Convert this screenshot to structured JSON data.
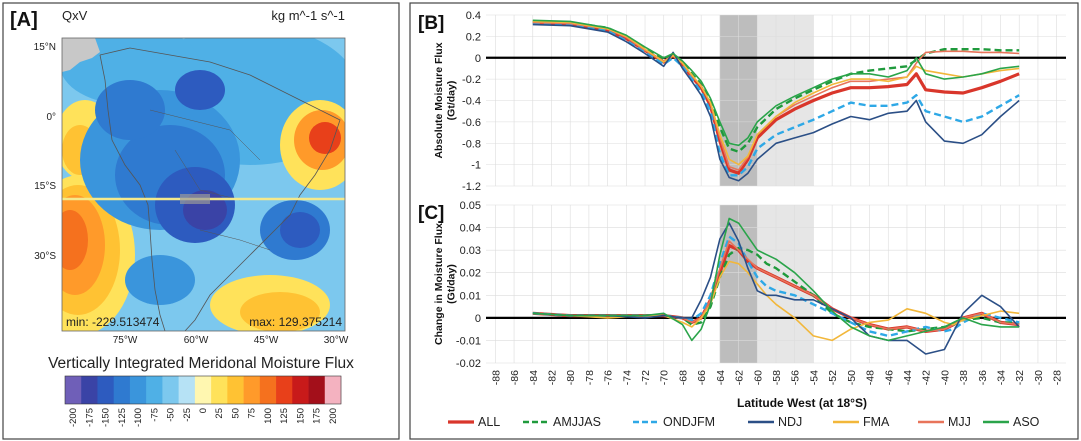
{
  "panel_a": {
    "label": "[A]",
    "var": "QxV",
    "units": "kg m^-1 s^-1",
    "lat_labels": [
      "15°N",
      "0°",
      "15°S",
      "30°S"
    ],
    "lon_labels": [
      "75°W",
      "60°W",
      "45°W",
      "30°W"
    ],
    "min_text": "min: -229.513474",
    "max_text": "max: 129.375214",
    "title": "Vertically Integrated Meridonal Moisture Flux",
    "colorbar": {
      "ticks": [
        "-200",
        "-175",
        "-150",
        "-125",
        "-100",
        "-75",
        "-50",
        "-25",
        "0",
        "25",
        "50",
        "75",
        "100",
        "125",
        "150",
        "175",
        "200"
      ],
      "colors": [
        "#6f5fb8",
        "#3a43a6",
        "#2d5bbf",
        "#2f7ad0",
        "#3a95dc",
        "#4fb0e6",
        "#7cc8ee",
        "#b6e2f5",
        "#fff7b0",
        "#ffe25a",
        "#ffc233",
        "#ff9a2a",
        "#f5711e",
        "#e8401a",
        "#c81a1a",
        "#a30f1a",
        "#f4b2c0"
      ]
    }
  },
  "chart_data": [
    {
      "panel": "[B]",
      "type": "line",
      "ylabel": "Absolute Moisture Flux (Gt/day)",
      "ylim": [
        -1.2,
        0.4
      ],
      "yticks": [
        "0.4",
        "0.2",
        "0",
        "-0.2",
        "-0.4",
        "-0.6",
        "-0.8",
        "-1",
        "-1.2"
      ],
      "ytick_values": [
        0.4,
        0.2,
        0,
        -0.2,
        -0.4,
        -0.6,
        -0.8,
        -1,
        -1.2
      ],
      "x": [
        -84,
        -80,
        -76,
        -74,
        -72,
        -70,
        -69,
        -68,
        -67,
        -66,
        -65,
        -64,
        -63,
        -62,
        -61,
        -60,
        -58,
        -56,
        -54,
        -52,
        -50,
        -48,
        -46,
        -44,
        -43,
        -42,
        -40,
        -38,
        -36,
        -34,
        -32
      ],
      "series": [
        {
          "name": "ALL",
          "values": [
            0.33,
            0.32,
            0.26,
            0.18,
            0.07,
            -0.04,
            0.02,
            -0.06,
            -0.18,
            -0.28,
            -0.45,
            -0.78,
            -1.05,
            -1.08,
            -0.95,
            -0.75,
            -0.58,
            -0.48,
            -0.4,
            -0.33,
            -0.28,
            -0.28,
            -0.27,
            -0.25,
            -0.15,
            -0.3,
            -0.32,
            -0.33,
            -0.28,
            -0.22,
            -0.15
          ]
        },
        {
          "name": "AMJJAS",
          "values": [
            0.34,
            0.33,
            0.28,
            0.2,
            0.08,
            -0.02,
            0.03,
            -0.04,
            -0.15,
            -0.25,
            -0.4,
            -0.65,
            -0.85,
            -0.88,
            -0.8,
            -0.65,
            -0.48,
            -0.38,
            -0.3,
            -0.22,
            -0.15,
            -0.12,
            -0.1,
            -0.08,
            -0.02,
            0.04,
            0.08,
            0.08,
            0.08,
            0.07,
            0.07
          ]
        },
        {
          "name": "ONDJFM",
          "values": [
            0.32,
            0.31,
            0.25,
            0.16,
            0.05,
            -0.06,
            0.0,
            -0.08,
            -0.2,
            -0.32,
            -0.5,
            -0.9,
            -1.1,
            -1.1,
            -1.02,
            -0.85,
            -0.72,
            -0.65,
            -0.58,
            -0.5,
            -0.42,
            -0.45,
            -0.45,
            -0.42,
            -0.35,
            -0.5,
            -0.55,
            -0.6,
            -0.55,
            -0.45,
            -0.35
          ]
        },
        {
          "name": "NDJ",
          "values": [
            0.31,
            0.3,
            0.24,
            0.15,
            0.04,
            -0.08,
            0.05,
            -0.1,
            -0.22,
            -0.35,
            -0.55,
            -0.95,
            -1.12,
            -1.15,
            -1.08,
            -0.95,
            -0.8,
            -0.75,
            -0.7,
            -0.62,
            -0.55,
            -0.58,
            -0.52,
            -0.5,
            -0.4,
            -0.6,
            -0.78,
            -0.8,
            -0.72,
            -0.55,
            -0.4
          ]
        },
        {
          "name": "FMA",
          "values": [
            0.34,
            0.33,
            0.27,
            0.2,
            0.08,
            -0.04,
            0.02,
            -0.05,
            -0.16,
            -0.27,
            -0.42,
            -0.72,
            -0.95,
            -1.0,
            -0.92,
            -0.72,
            -0.55,
            -0.42,
            -0.33,
            -0.25,
            -0.2,
            -0.2,
            -0.22,
            -0.18,
            -0.08,
            -0.12,
            -0.15,
            -0.18,
            -0.15,
            -0.12,
            -0.1
          ]
        },
        {
          "name": "MJJ",
          "values": [
            0.33,
            0.32,
            0.27,
            0.19,
            0.07,
            -0.03,
            0.02,
            -0.05,
            -0.17,
            -0.26,
            -0.43,
            -0.75,
            -1.02,
            -1.05,
            -0.93,
            -0.72,
            -0.55,
            -0.44,
            -0.36,
            -0.28,
            -0.22,
            -0.22,
            -0.2,
            -0.18,
            -0.05,
            0.05,
            0.06,
            0.06,
            0.05,
            0.05,
            0.04
          ]
        },
        {
          "name": "ASO",
          "values": [
            0.35,
            0.34,
            0.28,
            0.21,
            0.1,
            0.0,
            0.04,
            -0.03,
            -0.12,
            -0.22,
            -0.38,
            -0.6,
            -0.8,
            -0.82,
            -0.75,
            -0.6,
            -0.45,
            -0.36,
            -0.28,
            -0.2,
            -0.15,
            -0.15,
            -0.18,
            -0.12,
            0.0,
            -0.15,
            -0.2,
            -0.18,
            -0.15,
            -0.1,
            -0.08
          ]
        }
      ]
    },
    {
      "panel": "[C]",
      "type": "line",
      "ylabel": "Change in Moisture Flux (Gt/day)",
      "ylim": [
        -0.02,
        0.05
      ],
      "yticks": [
        "0.05",
        "0.04",
        "0.03",
        "0.02",
        "0.01",
        "0",
        "-0.01",
        "-0.02"
      ],
      "ytick_values": [
        0.05,
        0.04,
        0.03,
        0.02,
        0.01,
        0,
        -0.01,
        -0.02
      ],
      "x": [
        -84,
        -80,
        -76,
        -72,
        -70,
        -68,
        -67,
        -66,
        -65,
        -64,
        -63,
        -62,
        -61,
        -60,
        -59,
        -58,
        -56,
        -54,
        -52,
        -50,
        -48,
        -46,
        -44,
        -42,
        -40,
        -39,
        -38,
        -36,
        -34,
        -32
      ],
      "series": [
        {
          "name": "ALL",
          "values": [
            0.002,
            0.001,
            0.001,
            0.001,
            0.001,
            0.0,
            -0.002,
            0.0,
            0.008,
            0.02,
            0.032,
            0.03,
            0.025,
            0.022,
            0.02,
            0.018,
            0.014,
            0.01,
            0.004,
            0.0,
            -0.003,
            -0.005,
            -0.004,
            -0.006,
            -0.005,
            -0.003,
            0.0,
            0.002,
            -0.002,
            -0.003
          ]
        },
        {
          "name": "AMJJAS",
          "values": [
            0.002,
            0.001,
            0.001,
            0.001,
            0.001,
            0.0,
            -0.003,
            -0.002,
            0.005,
            0.018,
            0.028,
            0.031,
            0.03,
            0.028,
            0.024,
            0.022,
            0.016,
            0.01,
            0.002,
            -0.002,
            -0.004,
            -0.005,
            -0.006,
            -0.005,
            -0.004,
            -0.003,
            -0.001,
            0.0,
            -0.002,
            -0.002
          ]
        },
        {
          "name": "ONDJFM",
          "values": [
            0.002,
            0.001,
            0.001,
            0.001,
            0.001,
            0.0,
            -0.001,
            0.002,
            0.01,
            0.024,
            0.036,
            0.033,
            0.025,
            0.018,
            0.014,
            0.012,
            0.01,
            0.006,
            0.002,
            -0.002,
            -0.006,
            -0.008,
            -0.006,
            -0.004,
            -0.006,
            -0.005,
            -0.002,
            0.002,
            0.0,
            -0.002
          ]
        },
        {
          "name": "NDJ",
          "values": [
            0.002,
            0.001,
            0.001,
            0.0,
            0.001,
            0.0,
            0.0,
            0.008,
            0.018,
            0.035,
            0.042,
            0.034,
            0.022,
            0.012,
            0.01,
            0.01,
            0.008,
            0.008,
            0.004,
            0.0,
            -0.008,
            -0.01,
            -0.01,
            -0.016,
            -0.014,
            -0.006,
            0.002,
            0.01,
            0.005,
            -0.004
          ]
        },
        {
          "name": "FMA",
          "values": [
            0.002,
            0.001,
            0.0,
            0.001,
            0.001,
            -0.002,
            -0.004,
            0.0,
            0.006,
            0.018,
            0.025,
            0.024,
            0.02,
            0.015,
            0.01,
            0.006,
            0.0,
            -0.008,
            -0.01,
            -0.005,
            -0.002,
            -0.001,
            0.004,
            0.002,
            -0.002,
            -0.003,
            -0.001,
            0.001,
            0.003,
            0.002
          ]
        },
        {
          "name": "MJJ",
          "values": [
            0.002,
            0.001,
            0.001,
            0.001,
            0.001,
            0.0,
            -0.002,
            0.0,
            0.008,
            0.022,
            0.034,
            0.03,
            0.026,
            0.022,
            0.02,
            0.018,
            0.014,
            0.01,
            0.004,
            0.0,
            -0.003,
            -0.005,
            -0.004,
            -0.006,
            -0.005,
            -0.003,
            0.0,
            0.002,
            -0.002,
            -0.003
          ]
        },
        {
          "name": "ASO",
          "values": [
            0.002,
            0.001,
            0.001,
            0.001,
            0.002,
            -0.003,
            -0.01,
            -0.005,
            0.006,
            0.028,
            0.044,
            0.042,
            0.036,
            0.03,
            0.028,
            0.026,
            0.02,
            0.012,
            0.003,
            -0.004,
            -0.008,
            -0.01,
            -0.008,
            -0.006,
            -0.004,
            -0.002,
            0.0,
            -0.003,
            -0.004,
            -0.004
          ]
        }
      ]
    }
  ],
  "x_axis": {
    "xlabel": "Latitude West (at 18°S)",
    "xticks": [
      "-88",
      "-86",
      "-84",
      "-82",
      "-80",
      "-78",
      "-76",
      "-74",
      "-72",
      "-70",
      "-68",
      "-66",
      "-64",
      "-62",
      "-60",
      "-58",
      "-56",
      "-54",
      "-52",
      "-50",
      "-48",
      "-46",
      "-44",
      "-42",
      "-40",
      "-38",
      "-36",
      "-34",
      "-32",
      "-30",
      "-28"
    ],
    "xtick_values": [
      -88,
      -86,
      -84,
      -82,
      -80,
      -78,
      -76,
      -74,
      -72,
      -70,
      -68,
      -66,
      -64,
      -62,
      -60,
      -58,
      -56,
      -54,
      -52,
      -50,
      -48,
      -46,
      -44,
      -42,
      -40,
      -38,
      -36,
      -34,
      -32,
      -30,
      -28
    ],
    "xlim": [
      -89,
      -27
    ],
    "shaded_dark": [
      -64,
      -60
    ],
    "shaded_light": [
      -60,
      -54
    ]
  },
  "legend": [
    {
      "name": "ALL",
      "color": "#d9362b",
      "dash": false,
      "width": 3.2
    },
    {
      "name": "AMJJAS",
      "color": "#1f9a3c",
      "dash": true,
      "width": 2.4
    },
    {
      "name": "ONDJFM",
      "color": "#2ea8e6",
      "dash": true,
      "width": 2.4
    },
    {
      "name": "NDJ",
      "color": "#2b4f86",
      "dash": false,
      "width": 1.6
    },
    {
      "name": "FMA",
      "color": "#f2b73a",
      "dash": false,
      "width": 1.6
    },
    {
      "name": "MJJ",
      "color": "#e8745a",
      "dash": false,
      "width": 1.6
    },
    {
      "name": "ASO",
      "color": "#2aa44a",
      "dash": false,
      "width": 1.6
    }
  ]
}
